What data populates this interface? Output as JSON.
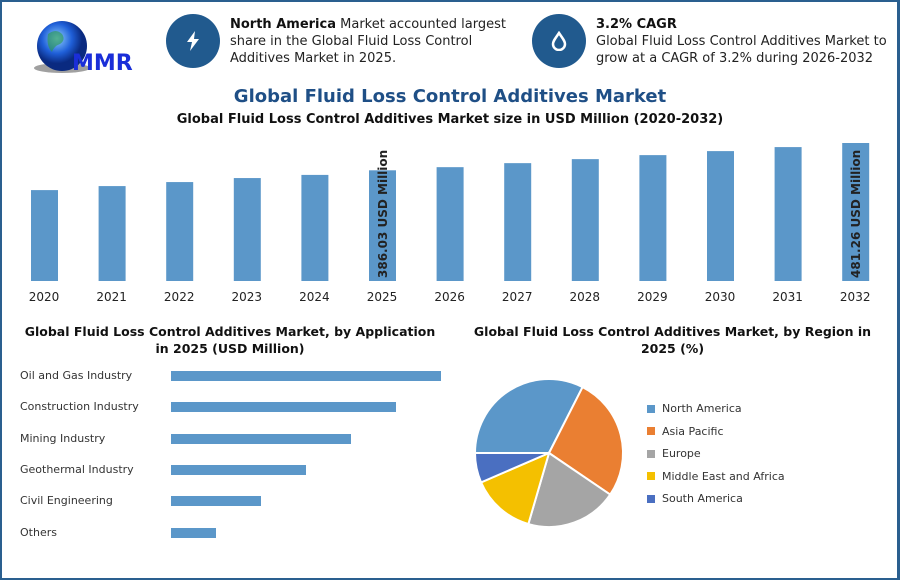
{
  "logo": {
    "text": "MMR"
  },
  "info_left": {
    "icon": "lightning-icon",
    "bold": "North America",
    "text": " Market accounted largest share in the Global Fluid Loss Control Additives Market in 2025."
  },
  "info_right": {
    "icon": "drop-icon",
    "bold": "3.2% CAGR",
    "text": "Global Fluid Loss Control Additives Market to grow at a CAGR of 3.2% during 2026-2032"
  },
  "title": "Global Fluid Loss Control Additives Market",
  "colors": {
    "bar": "#5b97c9",
    "accent": "#215a8e",
    "title": "#1f4f86"
  },
  "chart_data": [
    {
      "type": "bar",
      "title": "Global Fluid Loss Control Additives Market size in USD Million (2020-2032)",
      "categories": [
        "2020",
        "2021",
        "2022",
        "2023",
        "2024",
        "2025",
        "2026",
        "2027",
        "2028",
        "2029",
        "2030",
        "2031",
        "2032"
      ],
      "values": [
        317,
        331,
        345,
        359,
        370,
        386.03,
        397,
        411,
        425,
        439,
        453,
        467,
        481.26
      ],
      "data_labels": {
        "2025": "386.03 USD Million",
        "2032": "481.26 USD Million"
      },
      "ylim": [
        0,
        481.26
      ]
    },
    {
      "type": "bar",
      "orientation": "horizontal",
      "title": "Global Fluid Loss Control Additives Market, by Application in 2025 (USD Million)",
      "categories": [
        "Oil and Gas Industry",
        "Construction Industry",
        "Mining Industry",
        "Geothermal Industry",
        "Civil Engineering",
        "Others"
      ],
      "relative_values": [
        100,
        83.3,
        66.7,
        50,
        33.3,
        16.7
      ]
    },
    {
      "type": "pie",
      "title": "Global Fluid Loss Control Additives Market, by Region in 2025 (%)",
      "legend_position": "right",
      "slices": [
        {
          "name": "North America",
          "value": 32.5,
          "color": "#5b97c9"
        },
        {
          "name": "Asia Pacific",
          "value": 27,
          "color": "#ea7f32"
        },
        {
          "name": "Europe",
          "value": 20,
          "color": "#a5a5a5"
        },
        {
          "name": "Middle East and Africa",
          "value": 14,
          "color": "#f4c000"
        },
        {
          "name": "South America",
          "value": 6.5,
          "color": "#4a6fc1"
        }
      ]
    }
  ]
}
